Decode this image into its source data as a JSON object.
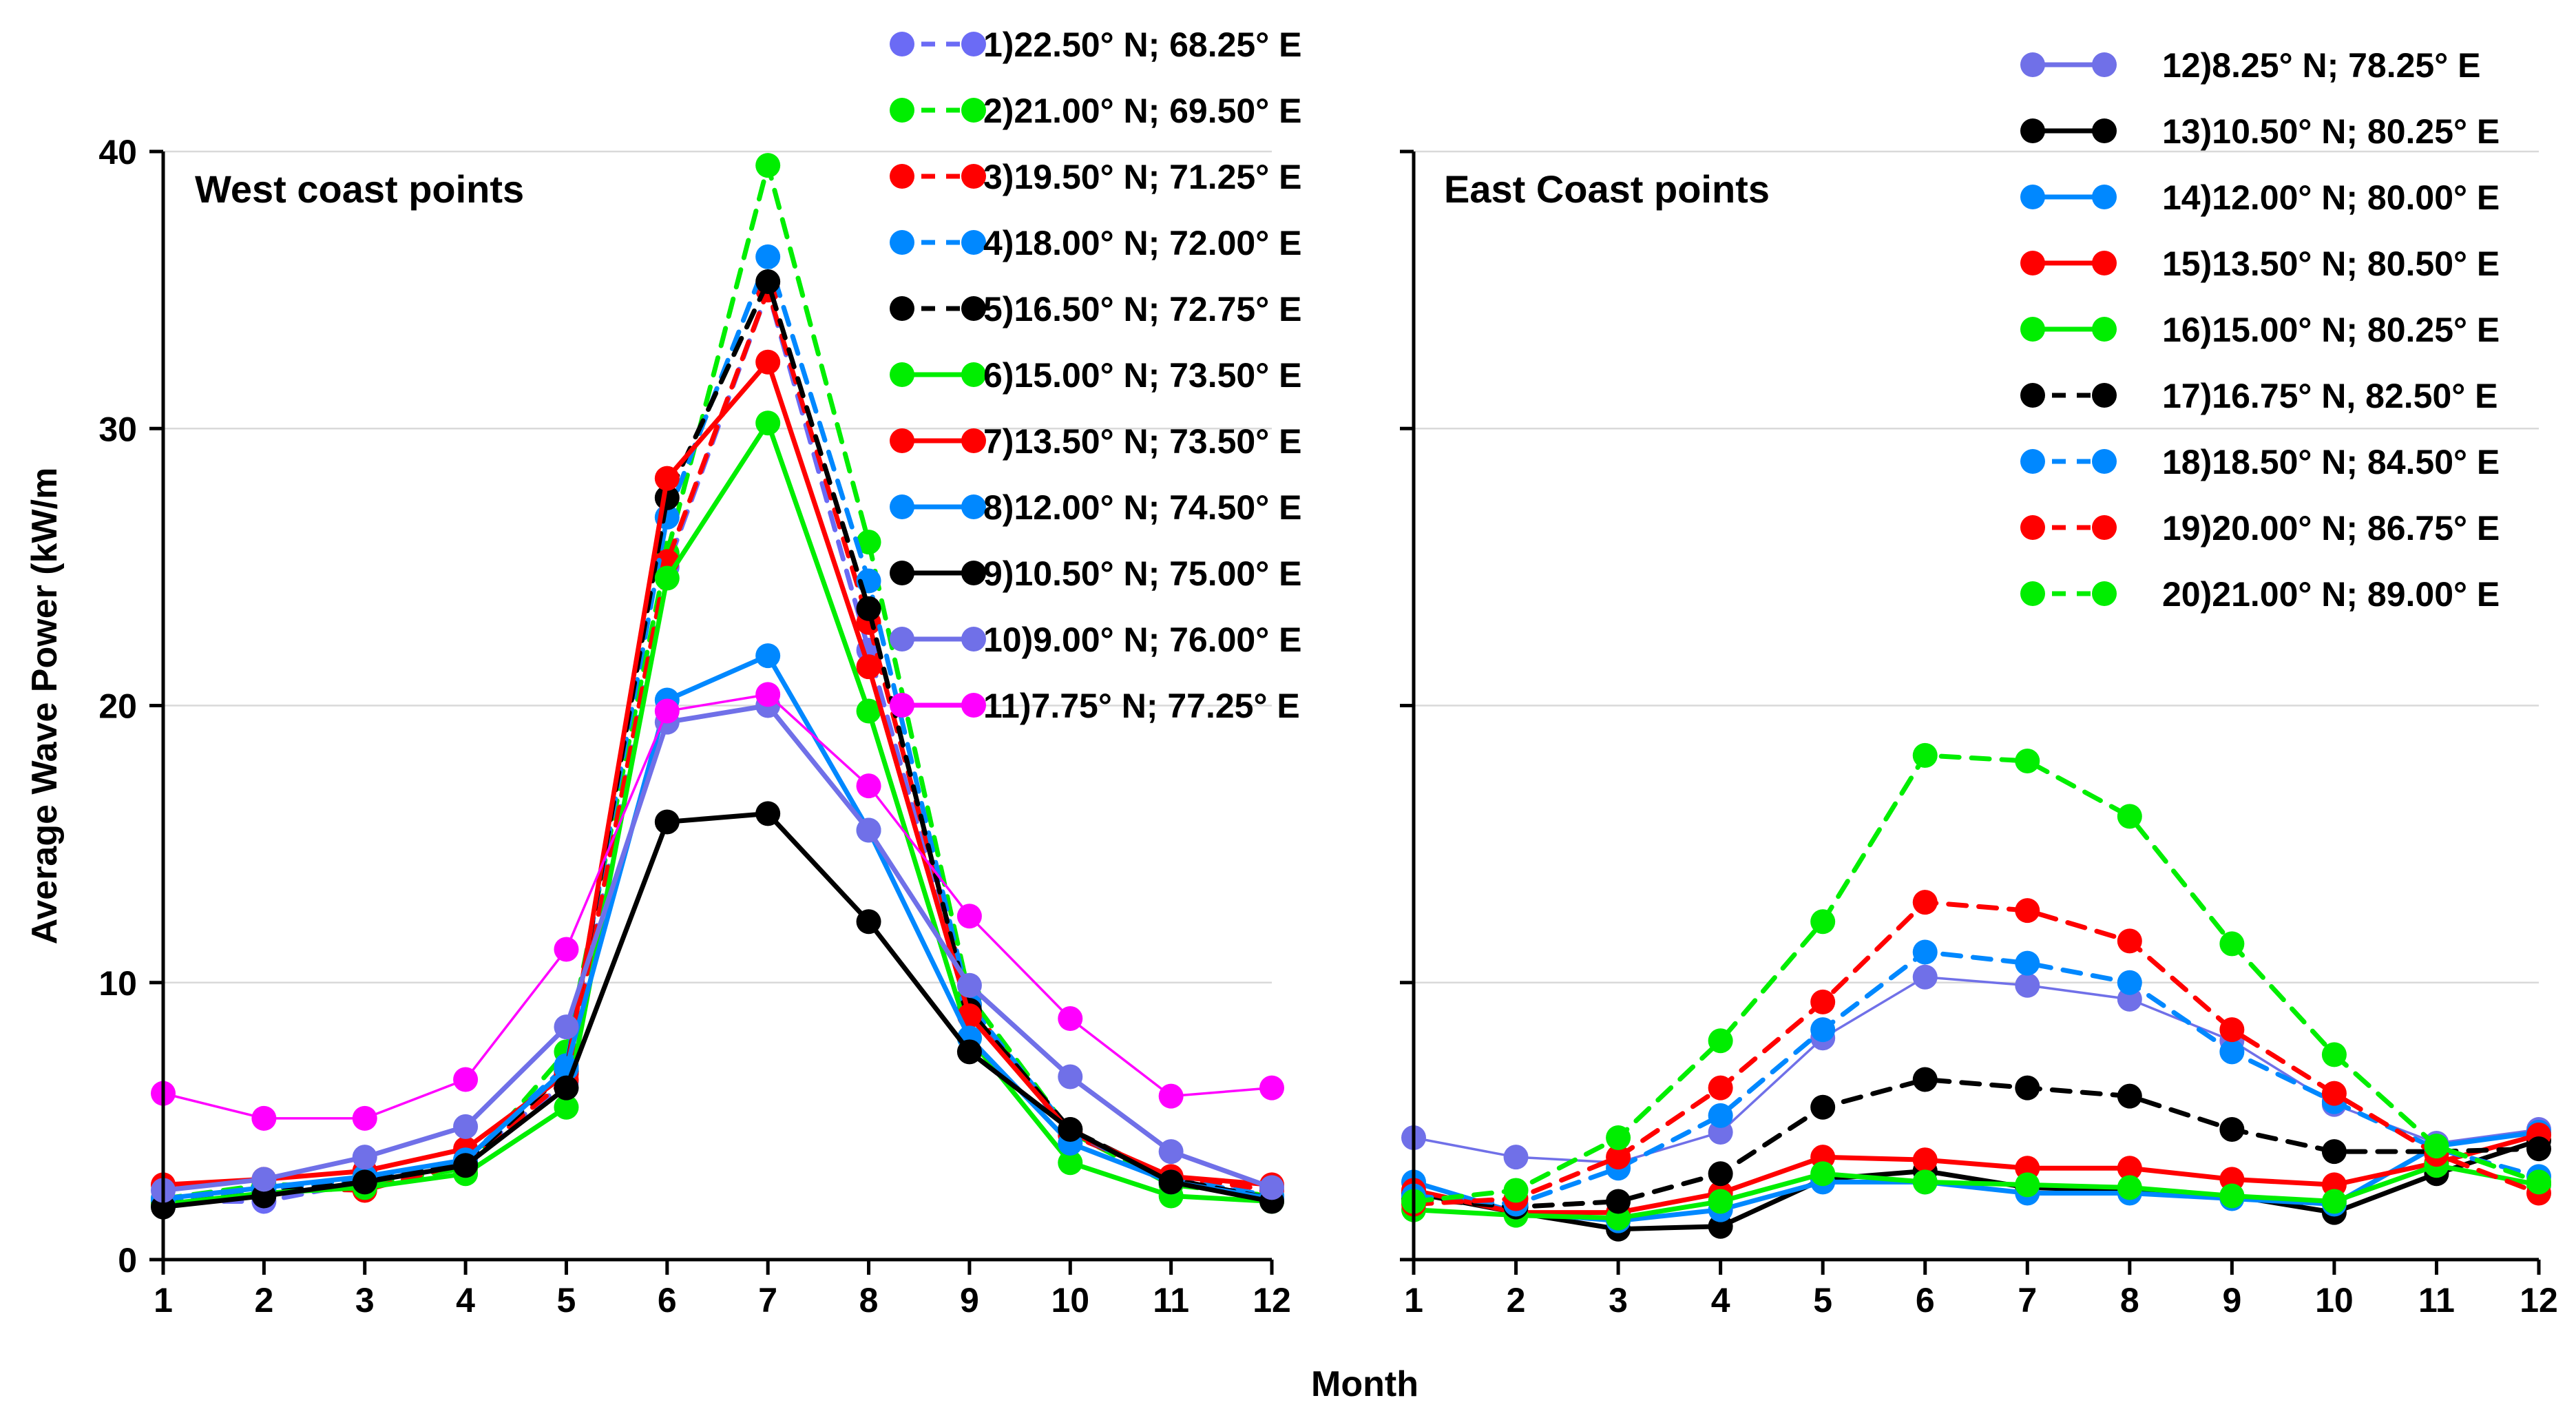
{
  "chart_data": {
    "type": "line",
    "xlabel": "Month",
    "ylabel": "Average Wave Power (kW/m",
    "x": [
      1,
      2,
      3,
      4,
      5,
      6,
      7,
      8,
      9,
      10,
      11,
      12
    ],
    "ylim": [
      0,
      40
    ],
    "yticks": [
      0,
      10,
      20,
      30,
      40
    ],
    "grid": true,
    "panels": [
      {
        "title": "West coast points",
        "series": [
          {
            "name": "1)22.50° N; 68.25° E",
            "color": "#6b6bf5",
            "dashed": true,
            "values": [
              2.1,
              2.1,
              2.8,
              3.6,
              6.4,
              25.0,
              35.0,
              22.0,
              9.0,
              4.5,
              3.0,
              2.2
            ]
          },
          {
            "name": "2)21.00° N; 69.50° E",
            "color": "#00ee00",
            "dashed": true,
            "values": [
              2.2,
              2.7,
              2.7,
              3.3,
              7.5,
              25.5,
              39.5,
              25.9,
              9.5,
              4.6,
              2.7,
              2.3
            ]
          },
          {
            "name": "3)19.50° N; 71.25° E",
            "color": "#ff0000",
            "dashed": true,
            "values": [
              2.1,
              2.6,
              2.5,
              3.5,
              6.5,
              25.2,
              35.0,
              23.0,
              9.2,
              4.5,
              3.0,
              2.5
            ]
          },
          {
            "name": "4)18.00° N; 72.00° E",
            "color": "#0088ff",
            "dashed": true,
            "values": [
              2.1,
              2.5,
              2.9,
              3.6,
              7.0,
              26.8,
              36.2,
              24.5,
              9.2,
              4.6,
              2.9,
              2.3
            ]
          },
          {
            "name": "5)16.50° N; 72.75° E",
            "color": "#000000",
            "dashed": true,
            "values": [
              2.0,
              2.4,
              2.8,
              3.5,
              6.8,
              27.5,
              35.3,
              23.5,
              9.0,
              4.7,
              2.9,
              2.2
            ]
          },
          {
            "name": "6)15.00° N; 73.50° E",
            "color": "#00ee00",
            "dashed": false,
            "values": [
              2.0,
              2.4,
              2.6,
              3.1,
              5.5,
              24.6,
              30.2,
              19.8,
              8.0,
              3.5,
              2.3,
              2.1
            ]
          },
          {
            "name": "7)13.50° N; 73.50° E",
            "color": "#ff0000",
            "dashed": false,
            "values": [
              2.7,
              2.9,
              3.2,
              4.0,
              6.7,
              28.2,
              32.4,
              21.4,
              8.8,
              4.6,
              3.0,
              2.7
            ]
          },
          {
            "name": "8)12.00° N; 74.50° E",
            "color": "#0088ff",
            "dashed": false,
            "values": [
              2.2,
              2.6,
              3.0,
              3.6,
              6.9,
              20.2,
              21.8,
              15.5,
              8.0,
              4.2,
              2.8,
              2.2
            ]
          },
          {
            "name": "9)10.50° N; 75.00° E",
            "color": "#000000",
            "dashed": false,
            "values": [
              1.9,
              2.3,
              2.8,
              3.4,
              6.2,
              15.8,
              16.1,
              12.2,
              7.5,
              4.7,
              2.8,
              2.1
            ]
          },
          {
            "name": "10)9.00° N; 76.00° E",
            "color": "#7070e8",
            "dashed": false,
            "values": [
              2.5,
              2.9,
              3.7,
              4.8,
              8.4,
              19.4,
              20.0,
              15.5,
              9.9,
              6.6,
              3.9,
              2.6
            ]
          },
          {
            "name": "11)7.75° N; 77.25° E",
            "color": "#ff00ff",
            "dashed": false,
            "thin": true,
            "values": [
              6.0,
              5.1,
              5.1,
              6.5,
              11.2,
              19.8,
              20.4,
              17.1,
              12.4,
              8.7,
              5.9,
              6.2
            ]
          }
        ]
      },
      {
        "title": "East Coast points",
        "series": [
          {
            "name": "12)8.25° N; 78.25° E",
            "color": "#7070e8",
            "dashed": false,
            "thin": true,
            "values": [
              4.4,
              3.7,
              3.5,
              4.6,
              8.0,
              10.2,
              9.9,
              9.4,
              7.9,
              5.6,
              4.2,
              4.7
            ]
          },
          {
            "name": "13)10.50° N; 80.25° E",
            "color": "#000000",
            "dashed": false,
            "values": [
              2.4,
              1.7,
              1.1,
              1.2,
              2.9,
              3.2,
              2.6,
              2.5,
              2.3,
              1.7,
              3.1,
              4.3
            ]
          },
          {
            "name": "14)12.00° N; 80.00° E",
            "color": "#0088ff",
            "dashed": false,
            "values": [
              2.8,
              1.7,
              1.4,
              1.8,
              2.8,
              2.8,
              2.4,
              2.4,
              2.2,
              2.0,
              4.1,
              4.6
            ]
          },
          {
            "name": "15)13.50° N; 80.50° E",
            "color": "#ff0000",
            "dashed": false,
            "values": [
              2.5,
              1.7,
              1.7,
              2.4,
              3.7,
              3.6,
              3.3,
              3.3,
              2.9,
              2.7,
              3.5,
              4.5
            ]
          },
          {
            "name": "16)15.00° N; 80.25° E",
            "color": "#00ee00",
            "dashed": false,
            "values": [
              1.8,
              1.6,
              1.5,
              2.1,
              3.1,
              2.8,
              2.7,
              2.6,
              2.3,
              2.1,
              3.4,
              2.7
            ]
          },
          {
            "name": "17)16.75° N, 82.50° E",
            "color": "#000000",
            "dashed": true,
            "values": [
              2.2,
              1.9,
              2.1,
              3.1,
              5.5,
              6.5,
              6.2,
              5.9,
              4.7,
              3.9,
              3.9,
              4.0
            ]
          },
          {
            "name": "18)18.50° N; 84.50° E",
            "color": "#0088ff",
            "dashed": true,
            "values": [
              2.3,
              2.0,
              3.3,
              5.2,
              8.3,
              11.1,
              10.7,
              10.0,
              7.5,
              5.7,
              4.0,
              3.0
            ]
          },
          {
            "name": "19)20.00° N; 86.75° E",
            "color": "#ff0000",
            "dashed": true,
            "values": [
              2.0,
              2.2,
              3.7,
              6.2,
              9.3,
              12.9,
              12.6,
              11.5,
              8.3,
              6.0,
              3.8,
              2.4
            ]
          },
          {
            "name": "20)21.00° N; 89.00° E",
            "color": "#00ee00",
            "dashed": true,
            "values": [
              2.1,
              2.5,
              4.4,
              7.9,
              12.2,
              18.2,
              18.0,
              16.0,
              11.4,
              7.4,
              4.1,
              2.8
            ]
          }
        ]
      }
    ]
  }
}
